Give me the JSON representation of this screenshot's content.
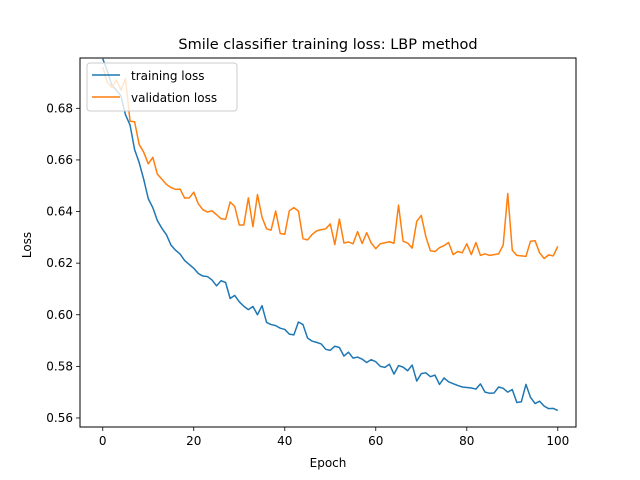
{
  "chart_data": {
    "type": "line",
    "title": "Smile classifier training loss: LBP method",
    "xlabel": "Epoch",
    "ylabel": "Loss",
    "xlim": [
      -5,
      104
    ],
    "ylim": [
      0.5565,
      0.6995
    ],
    "xticks": [
      0,
      20,
      40,
      60,
      80,
      100
    ],
    "yticks": [
      0.56,
      0.58,
      0.6,
      0.62,
      0.64,
      0.66,
      0.68
    ],
    "ytick_labels": [
      "0.56",
      "0.58",
      "0.60",
      "0.62",
      "0.64",
      "0.66",
      "0.68"
    ],
    "grid": false,
    "legend_position": "upper-left",
    "series": [
      {
        "name": "training loss",
        "color": "#1f77b4",
        "values": [
          0.6992,
          0.6945,
          0.689,
          0.687,
          0.6848,
          0.6775,
          0.6735,
          0.664,
          0.659,
          0.6525,
          0.645,
          0.6415,
          0.6365,
          0.6335,
          0.631,
          0.627,
          0.625,
          0.6235,
          0.621,
          0.6195,
          0.618,
          0.616,
          0.615,
          0.6148,
          0.6135,
          0.6112,
          0.6132,
          0.6125,
          0.6063,
          0.6075,
          0.605,
          0.6033,
          0.602,
          0.6032,
          0.6,
          0.6035,
          0.597,
          0.5962,
          0.5958,
          0.5948,
          0.5943,
          0.5925,
          0.5922,
          0.5972,
          0.5962,
          0.591,
          0.5898,
          0.5893,
          0.5887,
          0.5866,
          0.5862,
          0.5878,
          0.5873,
          0.584,
          0.5855,
          0.5832,
          0.5836,
          0.5828,
          0.5815,
          0.5826,
          0.5818,
          0.58,
          0.5796,
          0.5808,
          0.577,
          0.5803,
          0.5797,
          0.5783,
          0.5805,
          0.5743,
          0.5772,
          0.5775,
          0.576,
          0.5766,
          0.573,
          0.5755,
          0.574,
          0.5733,
          0.5726,
          0.572,
          0.5718,
          0.5716,
          0.5712,
          0.5732,
          0.57,
          0.5696,
          0.5697,
          0.572,
          0.5715,
          0.57,
          0.571,
          0.566,
          0.5663,
          0.573,
          0.568,
          0.5656,
          0.5665,
          0.5646,
          0.5636,
          0.5637,
          0.5629
        ]
      },
      {
        "name": "validation loss",
        "color": "#ff7f0e",
        "values": [
          0.696,
          0.69,
          0.688,
          0.691,
          0.687,
          0.6915,
          0.675,
          0.6748,
          0.666,
          0.663,
          0.6585,
          0.661,
          0.6545,
          0.6525,
          0.6505,
          0.6493,
          0.6486,
          0.6487,
          0.6452,
          0.6453,
          0.6475,
          0.643,
          0.6407,
          0.6398,
          0.6403,
          0.6388,
          0.6372,
          0.637,
          0.6437,
          0.642,
          0.6348,
          0.6348,
          0.6453,
          0.6341,
          0.6466,
          0.6378,
          0.6333,
          0.6328,
          0.6402,
          0.6315,
          0.6312,
          0.6403,
          0.6415,
          0.6402,
          0.6295,
          0.629,
          0.6311,
          0.6325,
          0.633,
          0.6333,
          0.6352,
          0.6272,
          0.6371,
          0.6278,
          0.6282,
          0.6275,
          0.6322,
          0.6276,
          0.6318,
          0.6278,
          0.6256,
          0.6275,
          0.6279,
          0.6283,
          0.6277,
          0.6425,
          0.6285,
          0.6278,
          0.6258,
          0.6362,
          0.6385,
          0.6303,
          0.6248,
          0.6245,
          0.626,
          0.6268,
          0.628,
          0.6233,
          0.6245,
          0.624,
          0.6275,
          0.6233,
          0.628,
          0.623,
          0.6236,
          0.623,
          0.6233,
          0.6236,
          0.627,
          0.647,
          0.625,
          0.623,
          0.6228,
          0.6226,
          0.6285,
          0.6287,
          0.624,
          0.6218,
          0.6232,
          0.6228,
          0.6265
        ]
      }
    ]
  }
}
